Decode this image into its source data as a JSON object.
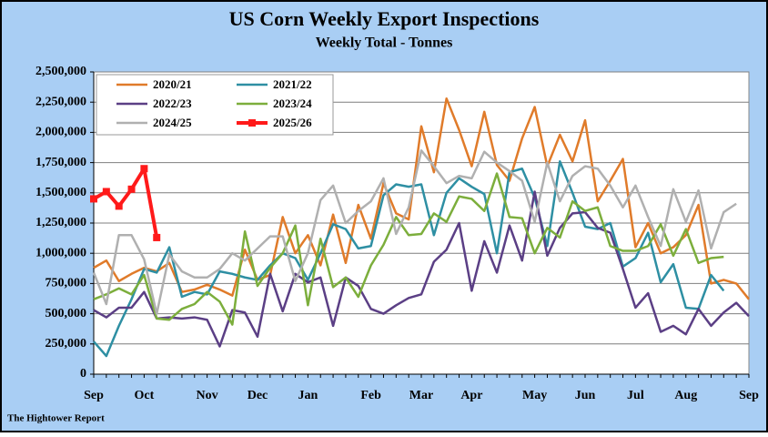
{
  "chart_data": {
    "type": "line",
    "title": "US Corn Weekly Export Inspections",
    "subtitle": "Weekly Total - Tonnes",
    "footer": "The Hightower Report",
    "grid": true,
    "legend": "upper left",
    "categories": [
      "Sep",
      null,
      null,
      null,
      "Oct",
      null,
      null,
      null,
      null,
      "Nov",
      null,
      null,
      null,
      "Dec",
      null,
      null,
      null,
      "Jan",
      null,
      null,
      null,
      null,
      "Feb",
      null,
      null,
      null,
      "Mar",
      null,
      null,
      null,
      "Apr",
      null,
      null,
      null,
      null,
      "May",
      null,
      null,
      null,
      "Jun",
      null,
      null,
      null,
      "Jul",
      null,
      null,
      null,
      "Aug",
      null,
      null,
      null,
      null,
      "Sep"
    ],
    "ylim": [
      0,
      2500000
    ],
    "yticks": [
      0,
      {
        "value": 250000,
        "label": "250,000"
      },
      {
        "value": 500000,
        "label": "500,000"
      },
      {
        "value": 750000,
        "label": "750,000"
      },
      {
        "value": 1000000,
        "label": "1,000,000"
      },
      {
        "value": 1250000,
        "label": "1,250,000"
      },
      {
        "value": 1500000,
        "label": "1,500,000"
      },
      {
        "value": 1750000,
        "label": "1,750,000"
      },
      {
        "value": 2000000,
        "label": "2,000,000"
      },
      {
        "value": 2250000,
        "label": "2,250,000"
      },
      {
        "value": 2500000,
        "label": "2,500,000"
      }
    ],
    "series": [
      {
        "name": "2020/21",
        "color": "#e07b2a",
        "values": [
          880000,
          940000,
          770000,
          830000,
          880000,
          850000,
          920000,
          680000,
          700000,
          740000,
          700000,
          650000,
          1030000,
          780000,
          820000,
          1300000,
          1000000,
          1150000,
          900000,
          1320000,
          920000,
          1400000,
          1120000,
          1580000,
          1330000,
          1280000,
          2050000,
          1670000,
          2280000,
          2020000,
          1720000,
          2170000,
          1730000,
          1600000,
          1950000,
          2210000,
          1720000,
          1980000,
          1760000,
          2100000,
          1430000,
          1600000,
          1780000,
          1050000,
          1250000,
          1000000,
          1050000,
          1150000,
          1400000,
          750000,
          780000,
          750000,
          620000
        ]
      },
      {
        "name": "2021/22",
        "color": "#2e8fa3",
        "values": [
          270000,
          150000,
          400000,
          620000,
          870000,
          840000,
          1050000,
          640000,
          680000,
          660000,
          850000,
          830000,
          800000,
          780000,
          900000,
          1000000,
          960000,
          780000,
          1000000,
          1240000,
          1200000,
          1040000,
          1060000,
          1480000,
          1570000,
          1550000,
          1570000,
          1150000,
          1500000,
          1620000,
          1550000,
          1490000,
          1000000,
          1670000,
          1700000,
          1460000,
          1060000,
          1760000,
          1500000,
          1220000,
          1200000,
          1250000,
          890000,
          960000,
          1170000,
          760000,
          910000,
          550000,
          540000,
          820000,
          690000,
          null,
          null
        ]
      },
      {
        "name": "2022/23",
        "color": "#5b3f85",
        "values": [
          530000,
          470000,
          550000,
          550000,
          680000,
          460000,
          470000,
          460000,
          470000,
          450000,
          230000,
          530000,
          510000,
          310000,
          830000,
          520000,
          830000,
          760000,
          800000,
          400000,
          800000,
          730000,
          540000,
          500000,
          570000,
          630000,
          660000,
          930000,
          1030000,
          1250000,
          690000,
          1100000,
          840000,
          1230000,
          940000,
          1510000,
          980000,
          1210000,
          1330000,
          1340000,
          1210000,
          1170000,
          870000,
          550000,
          670000,
          350000,
          400000,
          330000,
          540000,
          400000,
          510000,
          590000,
          480000
        ]
      },
      {
        "name": "2023/24",
        "color": "#7cae3c",
        "values": [
          620000,
          660000,
          710000,
          660000,
          820000,
          460000,
          450000,
          540000,
          580000,
          680000,
          600000,
          410000,
          1180000,
          730000,
          880000,
          1000000,
          1230000,
          570000,
          1120000,
          720000,
          800000,
          640000,
          900000,
          1070000,
          1300000,
          1150000,
          1160000,
          1330000,
          1260000,
          1470000,
          1450000,
          1350000,
          1660000,
          1300000,
          1290000,
          1000000,
          1210000,
          1130000,
          1430000,
          1350000,
          1380000,
          1060000,
          1020000,
          1020000,
          1060000,
          1240000,
          980000,
          1200000,
          920000,
          960000,
          970000,
          null,
          null
        ]
      },
      {
        "name": "2024/25",
        "color": "#b0b0b0",
        "values": [
          840000,
          580000,
          1150000,
          1150000,
          950000,
          500000,
          990000,
          850000,
          800000,
          800000,
          870000,
          1000000,
          940000,
          1040000,
          1140000,
          1140000,
          770000,
          1000000,
          1440000,
          1560000,
          1250000,
          1350000,
          1430000,
          1620000,
          1160000,
          1380000,
          1850000,
          1720000,
          1580000,
          1640000,
          1620000,
          1840000,
          1750000,
          1680000,
          1600000,
          1260000,
          1750000,
          1430000,
          1640000,
          1720000,
          1700000,
          1560000,
          1380000,
          1560000,
          1300000,
          1060000,
          1530000,
          1260000,
          1520000,
          1040000,
          1340000,
          1410000,
          null
        ]
      },
      {
        "name": "2025/26",
        "color": "#ff1a1a",
        "marker": "square",
        "values": [
          1450000,
          1510000,
          1390000,
          1530000,
          1700000,
          1130000,
          null,
          null,
          null,
          null,
          null,
          null,
          null,
          null,
          null,
          null,
          null,
          null,
          null,
          null,
          null,
          null,
          null,
          null,
          null,
          null,
          null,
          null,
          null,
          null,
          null,
          null,
          null,
          null,
          null,
          null,
          null,
          null,
          null,
          null,
          null,
          null,
          null,
          null,
          null,
          null,
          null,
          null,
          null,
          null,
          null,
          null,
          null
        ]
      }
    ]
  }
}
